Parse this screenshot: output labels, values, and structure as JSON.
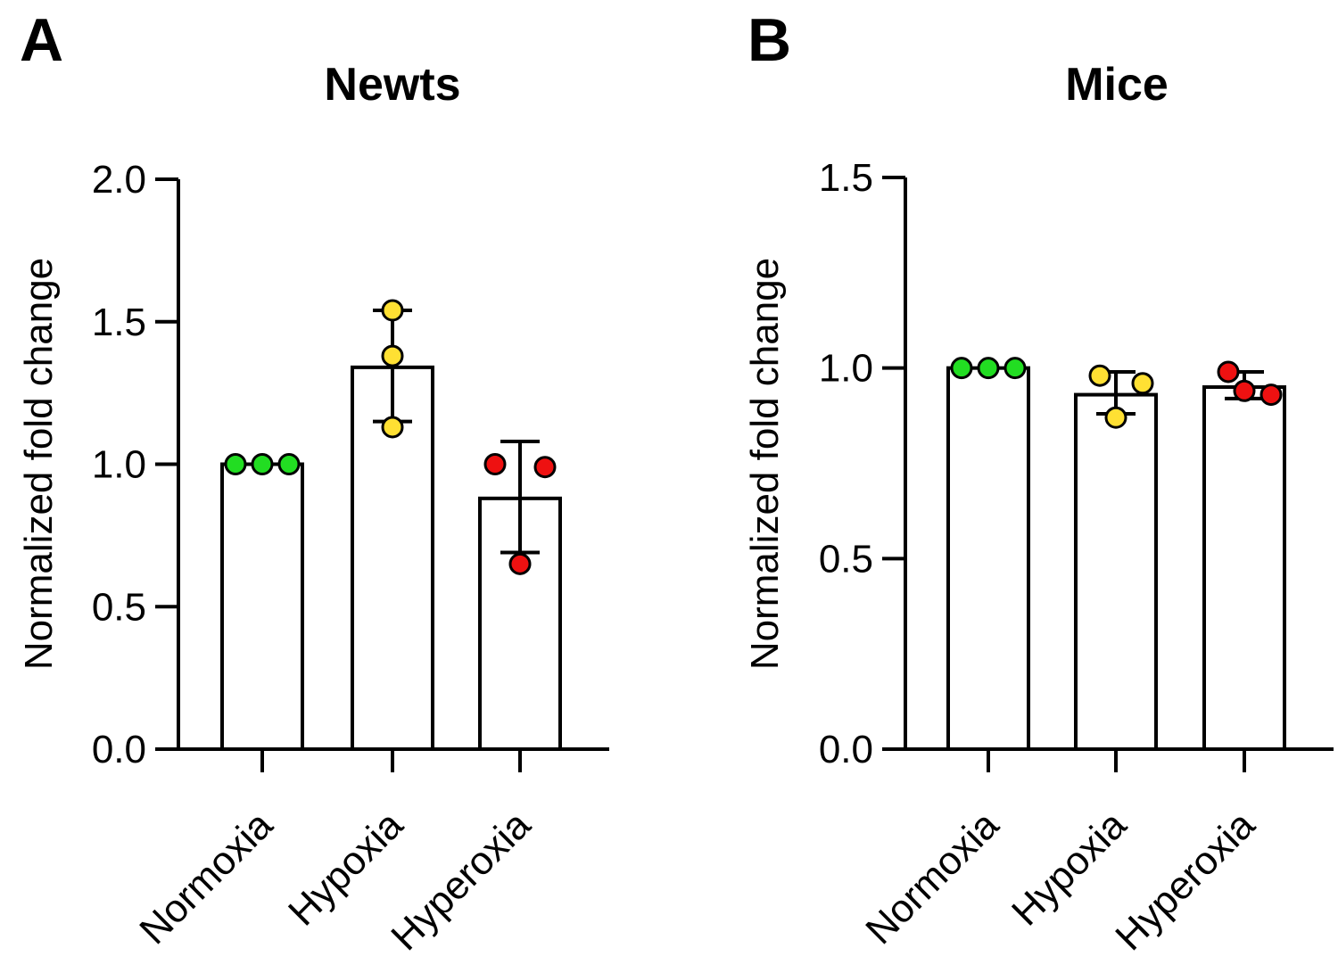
{
  "chart_data": [
    {
      "type": "bar",
      "panel": "A",
      "title": "Newts",
      "ylabel": "Normalized fold change",
      "ylim": [
        0,
        2.0
      ],
      "yticks": [
        "0.0",
        "0.5",
        "1.0",
        "1.5",
        "2.0"
      ],
      "categories": [
        "Normoxia",
        "Hypoxia",
        "Hyperoxia"
      ],
      "values": [
        1.0,
        1.34,
        0.88
      ],
      "error_low": [
        1.0,
        1.15,
        0.69
      ],
      "error_high": [
        1.0,
        1.54,
        1.08
      ],
      "points": [
        [
          1.0,
          1.0,
          1.0
        ],
        [
          1.54,
          1.38,
          1.13
        ],
        [
          1.0,
          0.99,
          0.65
        ]
      ],
      "colors": [
        "#22dd22",
        "#ffe033",
        "#ee1111"
      ]
    },
    {
      "type": "bar",
      "panel": "B",
      "title": "Mice",
      "ylabel": "Normalized fold change",
      "ylim": [
        0,
        1.5
      ],
      "yticks": [
        "0.0",
        "0.5",
        "1.0",
        "1.5"
      ],
      "categories": [
        "Normoxia",
        "Hypoxia",
        "Hyperoxia"
      ],
      "values": [
        1.0,
        0.93,
        0.95
      ],
      "error_low": [
        1.0,
        0.88,
        0.92
      ],
      "error_high": [
        1.0,
        0.99,
        0.99
      ],
      "points": [
        [
          1.0,
          1.0,
          1.0
        ],
        [
          0.98,
          0.87,
          0.96
        ],
        [
          0.99,
          0.94,
          0.93
        ]
      ],
      "colors": [
        "#22dd22",
        "#ffe033",
        "#ee1111"
      ]
    }
  ]
}
